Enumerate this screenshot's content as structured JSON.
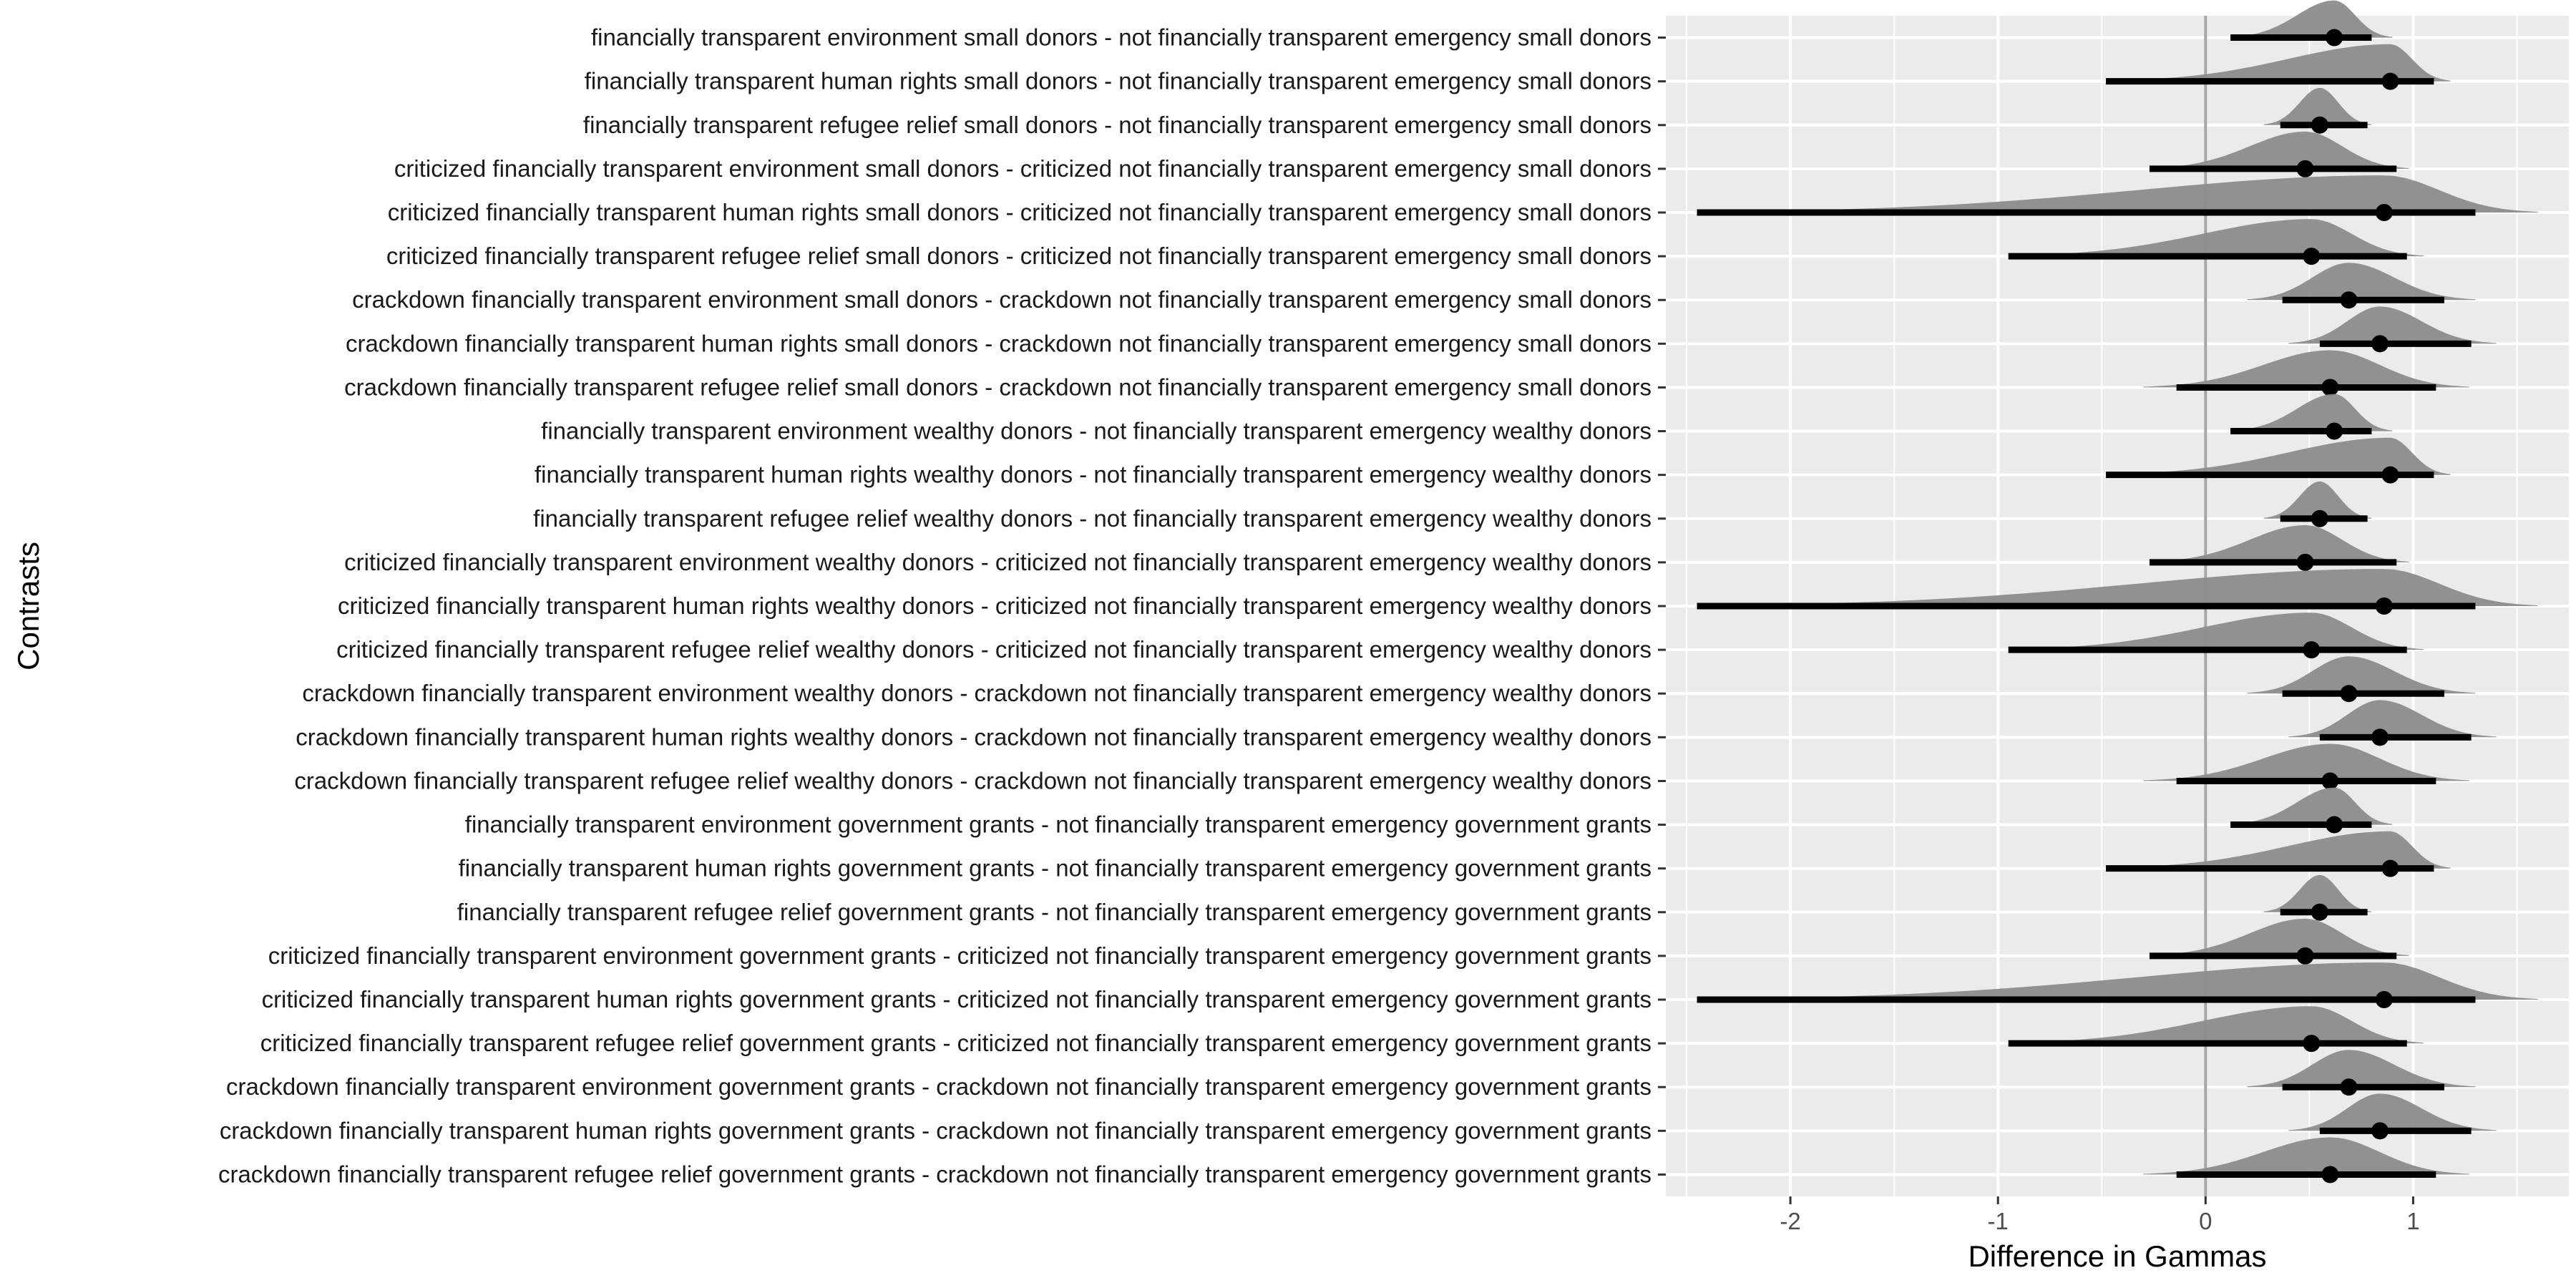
{
  "chart_data": {
    "type": "interval",
    "xlabel": "Difference in Gammas",
    "ylabel": "Contrasts",
    "xlim": [
      -2.6,
      1.75
    ],
    "xticks": [
      -2,
      -1,
      0,
      1
    ],
    "xtick_labels": [
      "-2",
      "-1",
      "0",
      "1"
    ],
    "reference_line": 0,
    "grid": true,
    "colors": {
      "panel": "#ebebeb",
      "grid": "#ffffff",
      "density": "#8c8c8c",
      "interval": "#000000",
      "refline": "#a6a6a6"
    },
    "contrasts": [
      {
        "label": "financially transparent environment small donors - not financially transparent emergency small donors",
        "point": 0.62,
        "low": 0.12,
        "high": 0.8,
        "dmin": 0.12,
        "dmax": 0.9
      },
      {
        "label": "financially transparent human rights small donors - not financially transparent emergency small donors",
        "point": 0.89,
        "low": -0.48,
        "high": 1.1,
        "dmin": -0.48,
        "dmax": 1.18
      },
      {
        "label": "financially transparent refugee relief small donors - not financially transparent emergency small donors",
        "point": 0.55,
        "low": 0.36,
        "high": 0.78,
        "dmin": 0.28,
        "dmax": 0.8
      },
      {
        "label": "criticized financially transparent environment small donors - criticized not financially transparent emergency small donors",
        "point": 0.48,
        "low": -0.27,
        "high": 0.92,
        "dmin": -0.27,
        "dmax": 0.98
      },
      {
        "label": "criticized financially transparent human rights small donors - criticized not financially transparent emergency small donors",
        "point": 0.86,
        "low": -2.45,
        "high": 1.3,
        "dmin": -2.45,
        "dmax": 1.6
      },
      {
        "label": "criticized financially transparent refugee relief small donors - criticized not financially transparent emergency small donors",
        "point": 0.51,
        "low": -0.95,
        "high": 0.97,
        "dmin": -0.95,
        "dmax": 1.05
      },
      {
        "label": "crackdown financially transparent environment small donors - crackdown not financially transparent emergency small donors",
        "point": 0.69,
        "low": 0.37,
        "high": 1.15,
        "dmin": 0.2,
        "dmax": 1.3
      },
      {
        "label": "crackdown financially transparent human rights small donors - crackdown not financially transparent emergency small donors",
        "point": 0.84,
        "low": 0.55,
        "high": 1.28,
        "dmin": 0.4,
        "dmax": 1.4
      },
      {
        "label": "crackdown financially transparent refugee relief small donors - crackdown not financially transparent emergency small donors",
        "point": 0.6,
        "low": -0.14,
        "high": 1.11,
        "dmin": -0.3,
        "dmax": 1.27
      },
      {
        "label": "financially transparent environment wealthy donors - not financially transparent emergency wealthy donors",
        "point": 0.62,
        "low": 0.12,
        "high": 0.8,
        "dmin": 0.12,
        "dmax": 0.9
      },
      {
        "label": "financially transparent human rights wealthy donors - not financially transparent emergency wealthy donors",
        "point": 0.89,
        "low": -0.48,
        "high": 1.1,
        "dmin": -0.48,
        "dmax": 1.18
      },
      {
        "label": "financially transparent refugee relief wealthy donors - not financially transparent emergency wealthy donors",
        "point": 0.55,
        "low": 0.36,
        "high": 0.78,
        "dmin": 0.28,
        "dmax": 0.8
      },
      {
        "label": "criticized financially transparent environment wealthy donors - criticized not financially transparent emergency wealthy donors",
        "point": 0.48,
        "low": -0.27,
        "high": 0.92,
        "dmin": -0.27,
        "dmax": 0.98
      },
      {
        "label": "criticized financially transparent human rights wealthy donors - criticized not financially transparent emergency wealthy donors",
        "point": 0.86,
        "low": -2.45,
        "high": 1.3,
        "dmin": -2.45,
        "dmax": 1.6
      },
      {
        "label": "criticized financially transparent refugee relief wealthy donors - criticized not financially transparent emergency wealthy donors",
        "point": 0.51,
        "low": -0.95,
        "high": 0.97,
        "dmin": -0.95,
        "dmax": 1.05
      },
      {
        "label": "crackdown financially transparent environment wealthy donors - crackdown not financially transparent emergency wealthy donors",
        "point": 0.69,
        "low": 0.37,
        "high": 1.15,
        "dmin": 0.2,
        "dmax": 1.3
      },
      {
        "label": "crackdown financially transparent human rights wealthy donors - crackdown not financially transparent emergency wealthy donors",
        "point": 0.84,
        "low": 0.55,
        "high": 1.28,
        "dmin": 0.4,
        "dmax": 1.4
      },
      {
        "label": "crackdown financially transparent refugee relief wealthy donors - crackdown not financially transparent emergency wealthy donors",
        "point": 0.6,
        "low": -0.14,
        "high": 1.11,
        "dmin": -0.3,
        "dmax": 1.27
      },
      {
        "label": "financially transparent environment government grants - not financially transparent emergency government grants",
        "point": 0.62,
        "low": 0.12,
        "high": 0.8,
        "dmin": 0.12,
        "dmax": 0.9
      },
      {
        "label": "financially transparent human rights government grants - not financially transparent emergency government grants",
        "point": 0.89,
        "low": -0.48,
        "high": 1.1,
        "dmin": -0.48,
        "dmax": 1.18
      },
      {
        "label": "financially transparent refugee relief government grants - not financially transparent emergency government grants",
        "point": 0.55,
        "low": 0.36,
        "high": 0.78,
        "dmin": 0.28,
        "dmax": 0.8
      },
      {
        "label": "criticized financially transparent environment government grants - criticized not financially transparent emergency government grants",
        "point": 0.48,
        "low": -0.27,
        "high": 0.92,
        "dmin": -0.27,
        "dmax": 0.98
      },
      {
        "label": "criticized financially transparent human rights government grants - criticized not financially transparent emergency government grants",
        "point": 0.86,
        "low": -2.45,
        "high": 1.3,
        "dmin": -2.45,
        "dmax": 1.6
      },
      {
        "label": "criticized financially transparent refugee relief government grants - criticized not financially transparent emergency government grants",
        "point": 0.51,
        "low": -0.95,
        "high": 0.97,
        "dmin": -0.95,
        "dmax": 1.05
      },
      {
        "label": "crackdown financially transparent environment government grants - crackdown not financially transparent emergency government grants",
        "point": 0.69,
        "low": 0.37,
        "high": 1.15,
        "dmin": 0.2,
        "dmax": 1.3
      },
      {
        "label": "crackdown financially transparent human rights government grants - crackdown not financially transparent emergency government grants",
        "point": 0.84,
        "low": 0.55,
        "high": 1.28,
        "dmin": 0.4,
        "dmax": 1.4
      },
      {
        "label": "crackdown financially transparent refugee relief government grants - crackdown not financially transparent emergency government grants",
        "point": 0.6,
        "low": -0.14,
        "high": 1.11,
        "dmin": -0.3,
        "dmax": 1.27
      }
    ]
  }
}
